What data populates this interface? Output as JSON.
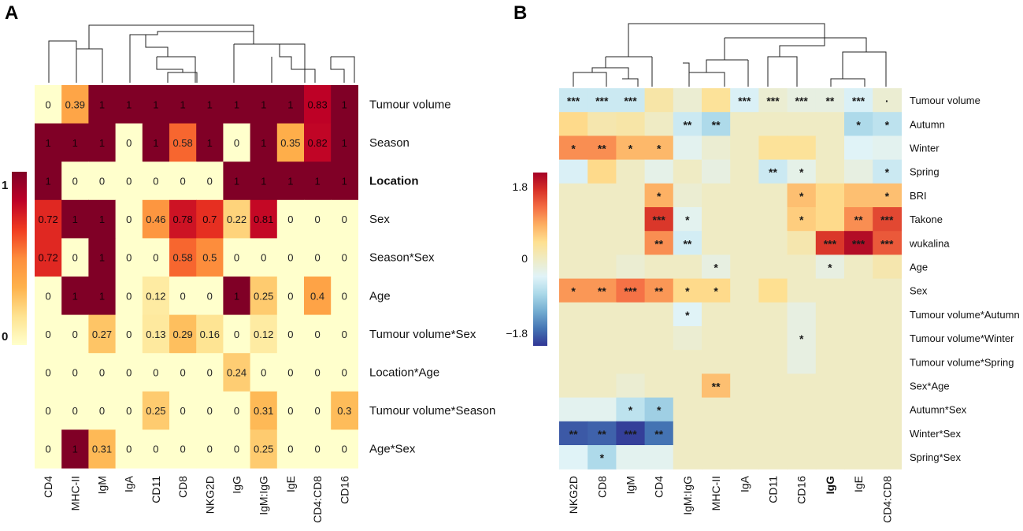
{
  "panels": {
    "a_label": "A",
    "b_label": "B"
  },
  "colors": {
    "a_scale": [
      "#FFFFCC",
      "#FEE391",
      "#FEB24C",
      "#FD8D3C",
      "#F03B20",
      "#BD0026",
      "#800026"
    ],
    "b_scale": [
      "#313695",
      "#4575B4",
      "#74ADD1",
      "#ABD9E9",
      "#E0F3F8",
      "#EFEBC4",
      "#FEE090",
      "#FDAE61",
      "#F46D43",
      "#D73027",
      "#A50026"
    ],
    "b_neutral": "#EFEBC4"
  },
  "chart_data": [
    {
      "type": "heatmap",
      "panel": "A",
      "rows": [
        "Tumour volume",
        "Season",
        "Location",
        "Sex",
        "Season*Sex",
        "Age",
        "Tumour volume*Sex",
        "Location*Age",
        "Tumour volume*Season",
        "Age*Sex"
      ],
      "columns": [
        "CD4",
        "MHC-II",
        "IgM",
        "IgA",
        "CD11",
        "CD8",
        "NKG2D",
        "IgG",
        "IgM:IgG",
        "IgE",
        "CD4:CD8",
        "CD16"
      ],
      "values": [
        [
          0,
          0.39,
          1,
          1,
          1,
          1,
          1,
          1,
          1,
          1,
          0.83,
          1
        ],
        [
          1,
          1,
          1,
          0,
          1,
          0.58,
          1,
          0,
          1,
          0.35,
          0.82,
          1
        ],
        [
          1,
          0,
          0,
          0,
          0,
          0,
          0,
          1,
          1,
          1,
          1,
          1
        ],
        [
          0.72,
          1,
          1,
          0,
          0.46,
          0.78,
          0.7,
          0.22,
          0.81,
          0,
          0,
          0
        ],
        [
          0.72,
          0,
          1,
          0,
          0,
          0.58,
          0.5,
          0,
          0,
          0,
          0,
          0
        ],
        [
          0,
          1,
          1,
          0,
          0.12,
          0,
          0,
          1,
          0.25,
          0,
          0.4,
          0
        ],
        [
          0,
          0,
          0.27,
          0,
          0.13,
          0.29,
          0.16,
          0,
          0.12,
          0,
          0,
          0
        ],
        [
          0,
          0,
          0,
          0,
          0,
          0,
          0,
          0.24,
          0,
          0,
          0,
          0
        ],
        [
          0,
          0,
          0,
          0,
          0.25,
          0,
          0,
          0,
          0.31,
          0,
          0,
          0.3
        ],
        [
          0,
          1,
          0.31,
          0,
          0,
          0,
          0,
          0,
          0.25,
          0,
          0,
          0
        ]
      ],
      "labels": [
        [
          "0",
          "0.39",
          "1",
          "1",
          "1",
          "1",
          "1",
          "1",
          "1",
          "1",
          "0.83",
          "1"
        ],
        [
          "1",
          "1",
          "1",
          "0",
          "1",
          "0.58",
          "1",
          "0",
          "1",
          "0.35",
          "0.82",
          "1"
        ],
        [
          "1",
          "0",
          "0",
          "0",
          "0",
          "0",
          "0",
          "1",
          "1",
          "1",
          "1",
          "1"
        ],
        [
          "0.72",
          "1",
          "1",
          "0",
          "0.46",
          "0.78",
          "0.7",
          "0.22",
          "0.81",
          "0",
          "0",
          "0"
        ],
        [
          "0.72",
          "0",
          "1",
          "0",
          "0",
          "0.58",
          "0.5",
          "0",
          "0",
          "0",
          "0",
          "0"
        ],
        [
          "0",
          "1",
          "1",
          "0",
          "0.12",
          "0",
          "0",
          "1",
          "0.25",
          "0",
          "0.4",
          "0"
        ],
        [
          "0",
          "0",
          "0.27",
          "0",
          "0.13",
          "0.29",
          "0.16",
          "0",
          "0.12",
          "0",
          "0",
          "0"
        ],
        [
          "0",
          "0",
          "0",
          "0",
          "0",
          "0",
          "0",
          "0.24",
          "0",
          "0",
          "0",
          "0"
        ],
        [
          "0",
          "0",
          "0",
          "0",
          "0.25",
          "0",
          "0",
          "0",
          "0.31",
          "0",
          "0",
          "0.3"
        ],
        [
          "0",
          "1",
          "0.31",
          "0",
          "0",
          "0",
          "0",
          "0",
          "0.25",
          "0",
          "0",
          "0"
        ]
      ],
      "bold_rows": [
        "Location"
      ],
      "legend": {
        "min": 0,
        "max": 1,
        "ticks": [
          "1",
          "0"
        ]
      }
    },
    {
      "type": "heatmap",
      "panel": "B",
      "rows": [
        "Tumour volume",
        "Autumn",
        "Winter",
        "Spring",
        "BRI",
        "Takone",
        "wukalina",
        "Age",
        "Sex",
        "Tumour volume*Autumn",
        "Tumour volume*Winter",
        "Tumour volume*Spring",
        "Sex*Age",
        "Autumn*Sex",
        "Winter*Sex",
        "Spring*Sex"
      ],
      "columns": [
        "NKG2D",
        "CD8",
        "IgM",
        "CD4",
        "IgM:IgG",
        "MHC-II",
        "IgA",
        "CD11",
        "CD16",
        "IgG",
        "IgE",
        "CD4:CD8"
      ],
      "values": [
        [
          -0.5,
          -0.5,
          -0.5,
          0.2,
          -0.1,
          0.3,
          -0.4,
          -0.1,
          -0.2,
          -0.2,
          -0.4,
          -0.1
        ],
        [
          0.4,
          0.15,
          0.2,
          0,
          -0.5,
          -0.7,
          0,
          0,
          0,
          0,
          -0.7,
          -0.6
        ],
        [
          0.9,
          0.9,
          0.65,
          0.65,
          -0.3,
          -0.1,
          0,
          0.3,
          0.3,
          0,
          -0.35,
          -0.3
        ],
        [
          -0.4,
          0.4,
          0,
          -0.25,
          0,
          -0.2,
          0,
          -0.5,
          -0.25,
          0,
          -0.2,
          -0.5
        ],
        [
          0,
          0,
          0,
          0.7,
          -0.1,
          0,
          0,
          0,
          0.6,
          0.4,
          0.6,
          0.6
        ],
        [
          0,
          0,
          0,
          1.4,
          -0.3,
          0,
          0,
          0,
          0.5,
          0.4,
          0.9,
          1.3
        ],
        [
          0,
          0,
          0,
          0.9,
          -0.45,
          0,
          0,
          0,
          0.15,
          1.4,
          1.7,
          1.2
        ],
        [
          0,
          0,
          -0.1,
          0,
          0,
          -0.2,
          0,
          0,
          0,
          -0.2,
          0,
          0.15
        ],
        [
          0.85,
          0.85,
          1.05,
          0.85,
          0.4,
          0.4,
          0,
          0.35,
          0,
          0,
          0,
          0
        ],
        [
          0,
          0,
          0,
          0,
          -0.35,
          0,
          0,
          0,
          -0.2,
          0,
          0,
          0
        ],
        [
          0,
          0,
          0,
          0,
          -0.1,
          0,
          0,
          0,
          -0.2,
          0,
          0,
          0
        ],
        [
          0,
          0,
          0,
          0,
          0,
          0,
          0,
          0,
          -0.2,
          0,
          0,
          0
        ],
        [
          0,
          0,
          -0.1,
          0,
          0,
          0.6,
          0,
          0,
          0,
          0,
          0,
          0
        ],
        [
          -0.3,
          -0.3,
          -0.6,
          -0.8,
          0,
          0,
          0,
          0,
          0,
          0,
          0,
          0
        ],
        [
          -1.6,
          -1.55,
          -1.75,
          -1.45,
          0,
          0,
          0,
          0,
          0,
          0,
          0,
          0
        ],
        [
          -0.35,
          -0.7,
          -0.3,
          -0.3,
          0,
          0,
          0,
          0,
          0,
          0,
          0,
          0
        ]
      ],
      "stars": [
        [
          "***",
          "***",
          "***",
          "",
          "",
          "",
          "***",
          "***",
          "***",
          "**",
          "***",
          "·"
        ],
        [
          "",
          "",
          "",
          "",
          "**",
          "**",
          "",
          "",
          "",
          "",
          "*",
          "*"
        ],
        [
          "*",
          "**",
          "*",
          "*",
          "",
          "",
          "",
          "",
          "",
          "",
          "",
          ""
        ],
        [
          "",
          "",
          "",
          "",
          "",
          "",
          "",
          "**",
          "*",
          "",
          "",
          "*"
        ],
        [
          "",
          "",
          "",
          "*",
          "",
          "",
          "",
          "",
          "*",
          "",
          "",
          "*"
        ],
        [
          "",
          "",
          "",
          "***",
          "*",
          "",
          "",
          "",
          "*",
          "",
          "**",
          "***"
        ],
        [
          "",
          "",
          "",
          "**",
          "**",
          "",
          "",
          "",
          "",
          "***",
          "***",
          "***"
        ],
        [
          "",
          "",
          "",
          "",
          "",
          "*",
          "",
          "",
          "",
          "*",
          "",
          ""
        ],
        [
          "*",
          "**",
          "***",
          "**",
          "*",
          "*",
          "",
          "",
          "",
          "",
          "",
          ""
        ],
        [
          "",
          "",
          "",
          "",
          "*",
          "",
          "",
          "",
          "",
          "",
          "",
          ""
        ],
        [
          "",
          "",
          "",
          "",
          "",
          "",
          "",
          "",
          "*",
          "",
          "",
          ""
        ],
        [
          "",
          "",
          "",
          "",
          "",
          "",
          "",
          "",
          "",
          "",
          "",
          ""
        ],
        [
          "",
          "",
          "",
          "",
          "",
          "**",
          "",
          "",
          "",
          "",
          "",
          ""
        ],
        [
          "",
          "",
          "*",
          "*",
          "",
          "",
          "",
          "",
          "",
          "",
          "",
          ""
        ],
        [
          "**",
          "**",
          "***",
          "**",
          "",
          "",
          "",
          "",
          "",
          "",
          "",
          ""
        ],
        [
          "",
          "*",
          "",
          "",
          "",
          "",
          "",
          "",
          "",
          "",
          "",
          ""
        ]
      ],
      "legend": {
        "min": -1.8,
        "max": 1.8,
        "ticks": [
          "1.8",
          "0",
          "−1.8"
        ]
      }
    }
  ]
}
